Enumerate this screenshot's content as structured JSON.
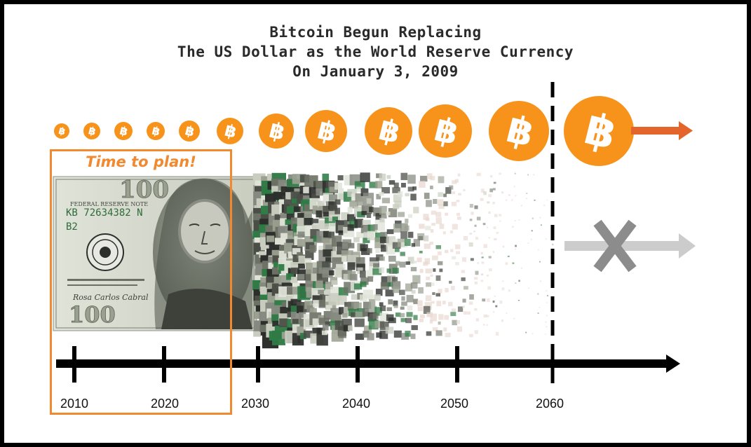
{
  "title": {
    "line1": "Bitcoin Begun Replacing",
    "line2": "The US Dollar as the World Reserve Currency",
    "line3": "On January 3, 2009"
  },
  "plan_label": "Time to plan!",
  "years": [
    "2010",
    "2020",
    "2030",
    "2040",
    "2050",
    "2060"
  ],
  "bill": {
    "header": "FEDERAL RESERVE NOTE",
    "serial": "KB 72634382 N",
    "district": "B2",
    "denomination": "100"
  },
  "colors": {
    "bitcoin_orange": "#f7931a",
    "plan_orange": "#f0892f",
    "arrow_orange": "#e4652b",
    "dollar_arrow_gray": "#cccccc",
    "x_gray": "#8c8c8c",
    "timeline": "#000000"
  },
  "icons": {
    "coins": "bitcoin-icon",
    "crossed": "x-mark-icon"
  }
}
